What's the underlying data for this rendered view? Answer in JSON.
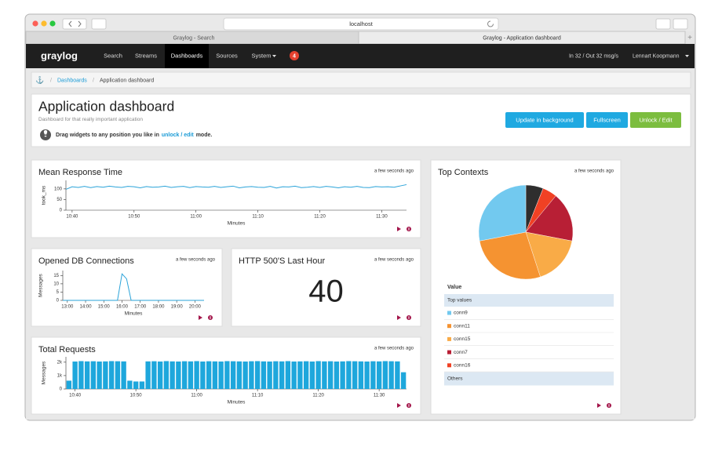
{
  "browser": {
    "url": "localhost",
    "tabs": [
      "Graylog - Search",
      "Graylog - Application dashboard"
    ]
  },
  "navbar": {
    "logo": "graylog",
    "items": [
      "Search",
      "Streams",
      "Dashboards",
      "Sources",
      "System"
    ],
    "badge": "4",
    "throughput": "In 32 / Out 32 msg/s",
    "user": "Lennart Koopmann"
  },
  "breadcrumb": [
    "Dashboards",
    "Application dashboard"
  ],
  "header": {
    "title": "Application dashboard",
    "description": "Dashboard for that really important application",
    "hint": [
      "Drag widgets to any position you like in",
      "unlock / edit",
      "mode."
    ],
    "buttons": [
      "Update in background",
      "Fullscreen",
      "Unlock / Edit"
    ]
  },
  "widgets": [
    {
      "type": "line",
      "title": "Mean Response Time",
      "updated": "a few seconds ago",
      "ylabel": "took_ms",
      "xlabel": "Minutes",
      "color": "#2aa3d9",
      "x": [
        "10:39",
        "10:40",
        "10:41",
        "10:42",
        "10:43",
        "10:44",
        "10:45",
        "10:46",
        "10:47",
        "10:48",
        "10:49",
        "10:50",
        "10:51",
        "10:52",
        "10:53",
        "10:54",
        "10:55",
        "10:56",
        "10:57",
        "10:58",
        "10:59",
        "11:00",
        "11:01",
        "11:02",
        "11:03",
        "11:04",
        "11:05",
        "11:06",
        "11:07",
        "11:08",
        "11:09",
        "11:10",
        "11:11",
        "11:12",
        "11:13",
        "11:14",
        "11:15",
        "11:16",
        "11:17",
        "11:18",
        "11:19",
        "11:20",
        "11:21",
        "11:22",
        "11:23",
        "11:24",
        "11:25",
        "11:26",
        "11:27",
        "11:28",
        "11:29",
        "11:30",
        "11:31",
        "11:32",
        "11:33",
        "11:34"
      ],
      "values": [
        98,
        110,
        107,
        112,
        106,
        111,
        108,
        113,
        109,
        107,
        112,
        110,
        105,
        111,
        108,
        109,
        113,
        107,
        110,
        112,
        106,
        111,
        109,
        108,
        112,
        107,
        110,
        113,
        105,
        109,
        111,
        108,
        107,
        112,
        104,
        110,
        109,
        113,
        106,
        108,
        111,
        107,
        112,
        109,
        105,
        110,
        108,
        112,
        107,
        106,
        111,
        109,
        110,
        108,
        114,
        120
      ],
      "ylim": [
        0,
        140
      ],
      "yticks": [
        0,
        50,
        100
      ],
      "xticks": [
        "10:40",
        "10:50",
        "11:00",
        "11:10",
        "11:20",
        "11:30"
      ]
    },
    {
      "type": "line",
      "title": "Opened DB Connections",
      "updated": "a few seconds ago",
      "ylabel": "Messages",
      "xlabel": "Minutes",
      "color": "#2aa3d9",
      "x": [
        "12:45",
        "13:00",
        "13:15",
        "13:30",
        "13:45",
        "14:00",
        "14:15",
        "14:30",
        "14:45",
        "15:00",
        "15:15",
        "15:30",
        "15:45",
        "16:00",
        "16:15",
        "16:30",
        "16:45",
        "17:00",
        "17:15",
        "17:30",
        "17:45",
        "18:00",
        "18:15",
        "18:30",
        "18:45",
        "19:00",
        "19:15",
        "19:30",
        "19:45",
        "20:00",
        "20:15",
        "20:30"
      ],
      "values": [
        0,
        0,
        0,
        0,
        0,
        0,
        0,
        0,
        0,
        0,
        0,
        0,
        0,
        16,
        13,
        0,
        0,
        0,
        0,
        0,
        0,
        0,
        0,
        0,
        0,
        0,
        0,
        0,
        0,
        0,
        0,
        0
      ],
      "ylim": [
        0,
        18
      ],
      "yticks": [
        0,
        5,
        10,
        15
      ],
      "xticks": [
        "13:00",
        "14:00",
        "15:00",
        "16:00",
        "17:00",
        "18:00",
        "19:00",
        "20:00"
      ]
    },
    {
      "type": "number",
      "title": "HTTP 500'S Last Hour",
      "updated": "a few seconds ago",
      "value": 40
    },
    {
      "type": "bar",
      "title": "Total Requests",
      "updated": "a few seconds ago",
      "ylabel": "Messages",
      "xlabel": "Minutes",
      "color": "#1ea7dc",
      "x": [
        "10:39",
        "10:40",
        "10:41",
        "10:42",
        "10:43",
        "10:44",
        "10:45",
        "10:46",
        "10:47",
        "10:48",
        "10:49",
        "10:50",
        "10:51",
        "10:52",
        "10:53",
        "10:54",
        "10:55",
        "10:56",
        "10:57",
        "10:58",
        "10:59",
        "11:00",
        "11:01",
        "11:02",
        "11:03",
        "11:04",
        "11:05",
        "11:06",
        "11:07",
        "11:08",
        "11:09",
        "11:10",
        "11:11",
        "11:12",
        "11:13",
        "11:14",
        "11:15",
        "11:16",
        "11:17",
        "11:18",
        "11:19",
        "11:20",
        "11:21",
        "11:22",
        "11:23",
        "11:24",
        "11:25",
        "11:26",
        "11:27",
        "11:28",
        "11:29",
        "11:30",
        "11:31",
        "11:32",
        "11:33",
        "11:34"
      ],
      "values": [
        620,
        2050,
        2080,
        2060,
        2070,
        2050,
        2060,
        2080,
        2070,
        2060,
        620,
        560,
        560,
        2060,
        2070,
        2050,
        2080,
        2060,
        2050,
        2070,
        2060,
        2080,
        2050,
        2070,
        2060,
        2050,
        2080,
        2070,
        2060,
        2050,
        2070,
        2080,
        2060,
        2050,
        2070,
        2060,
        2080,
        2050,
        2060,
        2070,
        2050,
        2080,
        2060,
        2070,
        2050,
        2060,
        2080,
        2070,
        2060,
        2050,
        2070,
        2060,
        2080,
        2070,
        2060,
        1250
      ],
      "ylim": [
        0,
        2400
      ],
      "yticks": [
        0,
        {
          "value": 1000,
          "label": "1k"
        },
        {
          "value": 2000,
          "label": "2k"
        }
      ],
      "xticks": [
        "10:40",
        "10:50",
        "11:00",
        "11:10",
        "11:20",
        "11:30"
      ]
    },
    {
      "type": "pie",
      "title": "Top Contexts",
      "updated": "a few seconds ago",
      "table_header": "Value",
      "group_label": "Top values",
      "categories": [
        "conn9",
        "conn11",
        "conn15",
        "conn7",
        "conn16",
        "Others"
      ],
      "values": [
        28,
        27,
        17,
        17,
        5,
        6
      ],
      "colors": [
        "#72c9ef",
        "#f59331",
        "#f9ab47",
        "#b81f35",
        "#f04124",
        "#2e2e2e"
      ]
    }
  ]
}
